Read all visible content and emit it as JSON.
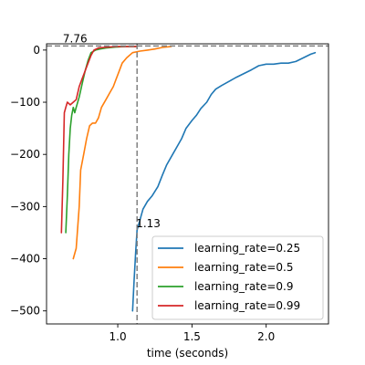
{
  "chart_data": {
    "type": "line",
    "title": "",
    "xlabel": "time (seconds)",
    "ylabel": "",
    "xlim": [
      0.52,
      2.42
    ],
    "ylim": [
      -525,
      12
    ],
    "xticks": [
      1.0,
      1.5,
      2.0
    ],
    "xtick_labels": [
      "1.0",
      "1.5",
      "2.0"
    ],
    "yticks": [
      0,
      -100,
      -200,
      -300,
      -400,
      -500
    ],
    "ytick_labels": [
      "0",
      "−100",
      "−200",
      "−300",
      "−400",
      "−500"
    ],
    "grid": false,
    "legend_position": "lower-right",
    "reference_lines": {
      "horizontal": {
        "y": 7.76,
        "label": "7.76",
        "color": "#808080",
        "style": "dashed"
      },
      "vertical": {
        "x": 1.13,
        "label": "1.13",
        "color": "#808080",
        "style": "dashed"
      }
    },
    "series": [
      {
        "name": "learning_rate=0.25",
        "color": "#1f77b4",
        "x": [
          1.1,
          1.11,
          1.12,
          1.13,
          1.15,
          1.17,
          1.2,
          1.23,
          1.27,
          1.3,
          1.33,
          1.37,
          1.4,
          1.43,
          1.46,
          1.5,
          1.53,
          1.56,
          1.6,
          1.63,
          1.66,
          1.7,
          1.75,
          1.8,
          1.85,
          1.9,
          1.95,
          2.0,
          2.05,
          2.1,
          2.15,
          2.2,
          2.25,
          2.3,
          2.33
        ],
        "y": [
          -500,
          -440,
          -390,
          -345,
          -325,
          -305,
          -290,
          -280,
          -262,
          -240,
          -220,
          -200,
          -185,
          -170,
          -150,
          -135,
          -125,
          -112,
          -100,
          -85,
          -75,
          -68,
          -60,
          -52,
          -45,
          -38,
          -30,
          -27,
          -27,
          -25,
          -25,
          -22,
          -15,
          -8,
          -5
        ]
      },
      {
        "name": "learning_rate=0.5",
        "color": "#ff7f0e",
        "x": [
          0.7,
          0.72,
          0.74,
          0.75,
          0.77,
          0.79,
          0.81,
          0.83,
          0.85,
          0.87,
          0.89,
          0.92,
          0.95,
          0.97,
          0.99,
          1.01,
          1.03,
          1.06,
          1.1,
          1.15,
          1.2,
          1.25,
          1.3,
          1.36
        ],
        "y": [
          -400,
          -380,
          -300,
          -230,
          -200,
          -170,
          -145,
          -140,
          -140,
          -130,
          -110,
          -95,
          -80,
          -70,
          -55,
          -40,
          -25,
          -15,
          -5,
          -2,
          0,
          2,
          5,
          7
        ]
      },
      {
        "name": "learning_rate=0.9",
        "color": "#2ca02c",
        "x": [
          0.65,
          0.66,
          0.67,
          0.68,
          0.69,
          0.7,
          0.71,
          0.72,
          0.74,
          0.76,
          0.78,
          0.8,
          0.82,
          0.85,
          0.88,
          0.92,
          0.96,
          1.0,
          1.05,
          1.1,
          1.13
        ],
        "y": [
          -350,
          -280,
          -200,
          -150,
          -125,
          -110,
          -120,
          -110,
          -90,
          -65,
          -40,
          -20,
          -5,
          0,
          2,
          4,
          5,
          6,
          7,
          7,
          7
        ]
      },
      {
        "name": "learning_rate=0.99",
        "color": "#d62728",
        "x": [
          0.62,
          0.63,
          0.64,
          0.65,
          0.66,
          0.68,
          0.7,
          0.72,
          0.74,
          0.76,
          0.78,
          0.8,
          0.82,
          0.84,
          0.87,
          0.9,
          0.95,
          1.0,
          1.05,
          1.1,
          1.13
        ],
        "y": [
          -350,
          -250,
          -120,
          -110,
          -100,
          -105,
          -100,
          -95,
          -70,
          -55,
          -40,
          -25,
          -10,
          0,
          4,
          5,
          6,
          7,
          7,
          7,
          7
        ]
      }
    ]
  }
}
